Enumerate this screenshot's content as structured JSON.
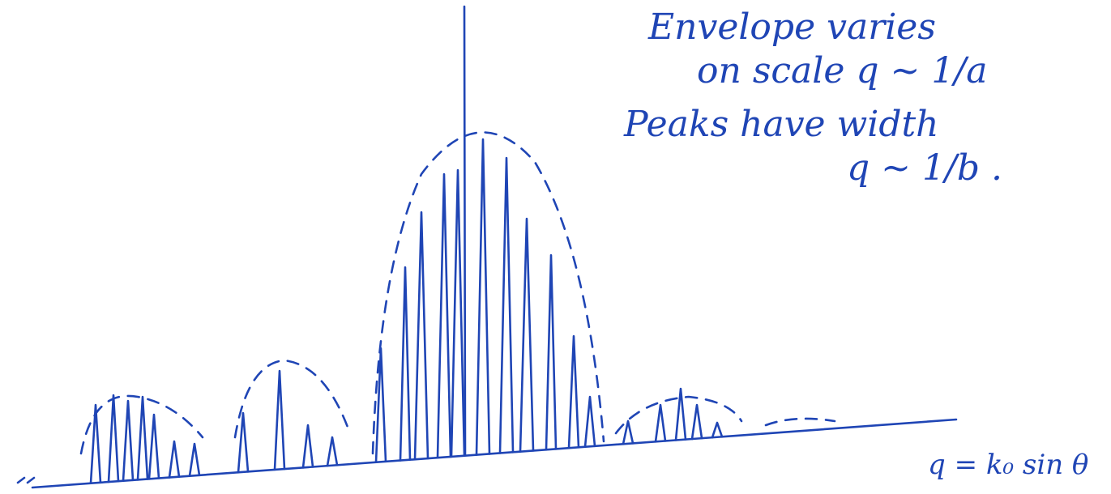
{
  "annotations": {
    "envelope": [
      "Envelope varies",
      "on scale q ~ 1/a"
    ],
    "peaks": [
      "Peaks have width",
      "q ~ 1/b ."
    ],
    "axis_label": "q = k₀ sin θ"
  }
}
